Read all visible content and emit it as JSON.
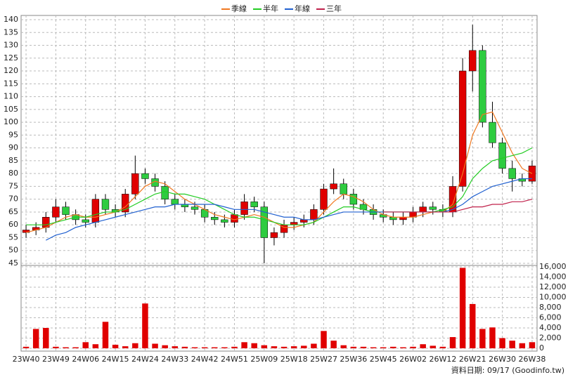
{
  "chart_data": [
    {
      "type": "candlestick",
      "legend": "top",
      "grid": true,
      "up_color": "#e00000",
      "down_color": "#2ecc40",
      "categories": [
        "23W40",
        null,
        null,
        "23W49",
        null,
        null,
        "24W06",
        null,
        null,
        "24W15",
        null,
        null,
        "24W24",
        null,
        null,
        "24W33",
        null,
        null,
        "24W42",
        null,
        null,
        "24W51",
        null,
        null,
        "25W09",
        null,
        null,
        "25W18",
        null,
        null,
        "25W27",
        null,
        null,
        "25W36",
        null,
        null,
        "25W45",
        null,
        null,
        "26W02",
        null,
        null,
        "26W12",
        null,
        null,
        "26W21",
        null,
        null,
        "26W30",
        null,
        null,
        "26W38"
      ],
      "open": [
        57,
        58,
        59,
        63,
        67,
        64,
        62,
        61,
        70,
        66,
        65,
        72,
        80,
        78,
        75,
        70,
        68,
        67,
        66,
        63,
        62,
        61,
        64,
        69,
        67,
        55,
        57,
        60,
        61,
        62,
        66,
        74,
        76,
        72,
        68,
        66,
        64,
        63,
        62,
        63,
        65,
        67,
        66,
        65,
        75,
        120,
        128,
        100,
        92,
        82,
        78,
        77
      ],
      "high": [
        60,
        61,
        65,
        70,
        69,
        66,
        64,
        72,
        72,
        68,
        74,
        87,
        82,
        80,
        77,
        72,
        70,
        69,
        68,
        65,
        64,
        66,
        72,
        71,
        69,
        59,
        62,
        63,
        64,
        68,
        76,
        82,
        78,
        74,
        70,
        68,
        66,
        65,
        65,
        67,
        69,
        69,
        68,
        79,
        125,
        138,
        130,
        108,
        94,
        85,
        80,
        85
      ],
      "low": [
        55,
        56,
        57,
        61,
        62,
        60,
        59,
        59,
        64,
        63,
        63,
        70,
        76,
        73,
        68,
        66,
        65,
        64,
        61,
        60,
        59,
        59,
        62,
        65,
        45,
        52,
        55,
        58,
        59,
        60,
        64,
        72,
        70,
        66,
        64,
        62,
        61,
        60,
        60,
        61,
        63,
        64,
        63,
        63,
        73,
        112,
        98,
        90,
        80,
        73,
        75,
        76
      ],
      "close": [
        58,
        59,
        63,
        67,
        64,
        62,
        61,
        70,
        66,
        65,
        72,
        80,
        78,
        75,
        70,
        68,
        67,
        66,
        63,
        62,
        61,
        64,
        69,
        67,
        55,
        57,
        60,
        61,
        62,
        66,
        74,
        76,
        72,
        68,
        66,
        64,
        63,
        62,
        63,
        65,
        67,
        66,
        65,
        75,
        120,
        128,
        100,
        92,
        82,
        78,
        77,
        83
      ],
      "ylim": [
        45,
        140
      ],
      "yticks": [
        45,
        50,
        55,
        60,
        65,
        70,
        75,
        80,
        85,
        90,
        95,
        100,
        105,
        110,
        115,
        120,
        125,
        130,
        135,
        140
      ],
      "series": [
        {
          "name": "季線",
          "color": "#f07820",
          "values": [
            57,
            58,
            59,
            61,
            63,
            64,
            63,
            63,
            64,
            65,
            67,
            71,
            75,
            77,
            76,
            73,
            70,
            68,
            66,
            64,
            63,
            62,
            63,
            64,
            63,
            61,
            59,
            59,
            60,
            61,
            65,
            69,
            72,
            71,
            69,
            66,
            64,
            63,
            63,
            63,
            64,
            65,
            65,
            68,
            80,
            95,
            103,
            104,
            96,
            88,
            82,
            80
          ]
        },
        {
          "name": "半年",
          "color": "#22cc22",
          "values": [
            60,
            60,
            60,
            61,
            62,
            63,
            63,
            64,
            65,
            65,
            66,
            68,
            70,
            72,
            73,
            72,
            72,
            71,
            70,
            68,
            66,
            64,
            63,
            63,
            62,
            61,
            60,
            60,
            60,
            61,
            63,
            65,
            67,
            67,
            66,
            65,
            65,
            65,
            65,
            65,
            65,
            65,
            66,
            67,
            71,
            78,
            82,
            85,
            86,
            87,
            88,
            90
          ]
        },
        {
          "name": "年線",
          "color": "#2060d0",
          "values": [
            null,
            null,
            54,
            56,
            57,
            59,
            60,
            61,
            62,
            63,
            64,
            65,
            66,
            67,
            67,
            68,
            68,
            68,
            68,
            68,
            67,
            66,
            66,
            66,
            65,
            64,
            63,
            63,
            62,
            62,
            63,
            64,
            65,
            65,
            65,
            65,
            65,
            65,
            65,
            65,
            65,
            65,
            65,
            66,
            68,
            71,
            73,
            75,
            76,
            77,
            78,
            78
          ]
        },
        {
          "name": "三年",
          "color": "#c0204a",
          "values": [
            null,
            null,
            null,
            null,
            null,
            null,
            null,
            null,
            null,
            null,
            null,
            null,
            null,
            null,
            null,
            null,
            null,
            null,
            null,
            null,
            null,
            null,
            null,
            null,
            null,
            null,
            null,
            null,
            null,
            null,
            null,
            null,
            null,
            null,
            null,
            null,
            65,
            65,
            65,
            65,
            65,
            65,
            65,
            65,
            66,
            67,
            67,
            68,
            68,
            69,
            69,
            70
          ]
        }
      ]
    },
    {
      "type": "bar",
      "color": "#e00000",
      "grid": true,
      "values": [
        300,
        3800,
        4000,
        300,
        200,
        200,
        1200,
        800,
        5200,
        700,
        400,
        1000,
        8800,
        900,
        600,
        400,
        300,
        200,
        200,
        200,
        200,
        300,
        1200,
        1000,
        600,
        400,
        300,
        400,
        500,
        900,
        3400,
        1500,
        600,
        300,
        300,
        200,
        200,
        300,
        200,
        300,
        800,
        500,
        300,
        2200,
        15800,
        8700,
        3800,
        4100,
        2000,
        1500,
        1000,
        1200
      ],
      "ylim": [
        0,
        16000
      ],
      "yticks": [
        0,
        {
          "value": 2000,
          "label": "2,000"
        },
        {
          "value": 4000,
          "label": "4,000"
        },
        {
          "value": 6000,
          "label": "6,000"
        },
        {
          "value": 8000,
          "label": "8,000"
        },
        {
          "value": 10000,
          "label": "10,000"
        },
        {
          "value": 12000,
          "label": "12,000"
        },
        {
          "value": 14000,
          "label": "14,000"
        },
        {
          "value": 16000,
          "label": "16,000"
        }
      ]
    }
  ],
  "footer": "資料日期: 09/17 (Goodinfo.tw)"
}
